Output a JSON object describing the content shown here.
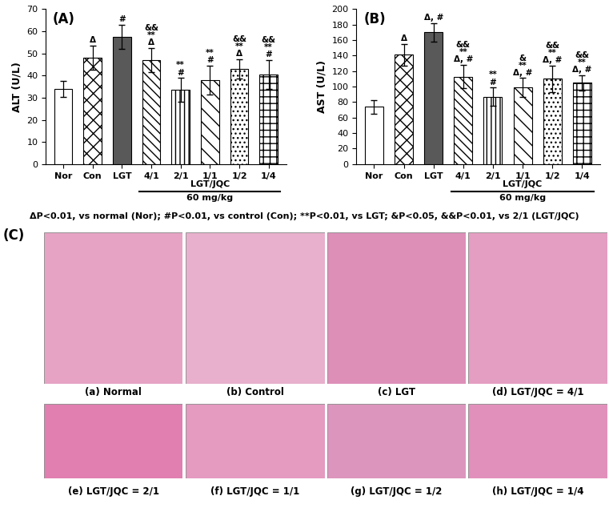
{
  "chart_data": [
    {
      "type": "bar",
      "panel": "(A)",
      "y_label": "ALT (U/L)",
      "categories": [
        "Nor",
        "Con",
        "LGT",
        "4/1",
        "2/1",
        "1/1",
        "1/2",
        "1/4"
      ],
      "values": [
        34,
        48,
        57.5,
        47,
        33.5,
        38,
        43,
        40.5
      ],
      "errors": [
        3.5,
        5.5,
        5.5,
        5.5,
        5.5,
        6.5,
        4.5,
        6.5
      ],
      "annotations": [
        null,
        "Δ",
        "#",
        "&&\n**\nΔ",
        "**\n#",
        "**\n#",
        "&&\n**\nΔ",
        "&&\n**\n#"
      ],
      "colors": [
        "#ffffff",
        "#ffffff",
        "#595959",
        "#ffffff",
        "#ffffff",
        "#ffffff",
        "#ffffff",
        "#ffffff"
      ],
      "group_label": "LGT/JQC",
      "group_dose": "60 mg/kg",
      "ylim": [
        0,
        70
      ],
      "yticks": [
        0,
        10,
        20,
        30,
        40,
        50,
        60,
        70
      ],
      "grid": false
    },
    {
      "type": "bar",
      "panel": "(B)",
      "y_label": "AST (U/L)",
      "categories": [
        "Nor",
        "Con",
        "LGT",
        "4/1",
        "2/1",
        "1/1",
        "1/2",
        "1/4"
      ],
      "values": [
        74,
        141,
        170,
        113,
        87,
        99,
        110,
        105
      ],
      "errors": [
        9,
        14,
        12,
        15,
        12,
        12,
        17,
        10
      ],
      "annotations": [
        null,
        "Δ",
        "Δ, #",
        "&&\n**\nΔ, #",
        "**\n#",
        "&\n**\nΔ, #",
        "&&\n**\nΔ, #",
        "&&\n**\nΔ, #"
      ],
      "colors": [
        "#ffffff",
        "#ffffff",
        "#595959",
        "#ffffff",
        "#ffffff",
        "#ffffff",
        "#ffffff",
        "#ffffff"
      ],
      "group_label": "LGT/JQC",
      "group_dose": "60 mg/kg",
      "ylim": [
        0,
        200
      ],
      "yticks": [
        0,
        20,
        40,
        60,
        80,
        100,
        120,
        140,
        160,
        180,
        200
      ],
      "grid": false
    }
  ],
  "footnote": "ΔP<0.01, vs normal (Nor); #P<0.01, vs control (Con); **P<0.01, vs LGT; &P<0.05, &&P<0.01, vs 2/1 (LGT/JQC)",
  "panel_C": {
    "label": "(C)",
    "captions": [
      "(a) Normal",
      "(b) Control",
      "(c) LGT",
      "(d) LGT/JQC = 4/1",
      "(e) LGT/JQC = 2/1",
      "(f) LGT/JQC = 1/1",
      "(g) LGT/JQC = 1/2",
      "(h) LGT/JQC = 1/4"
    ]
  }
}
